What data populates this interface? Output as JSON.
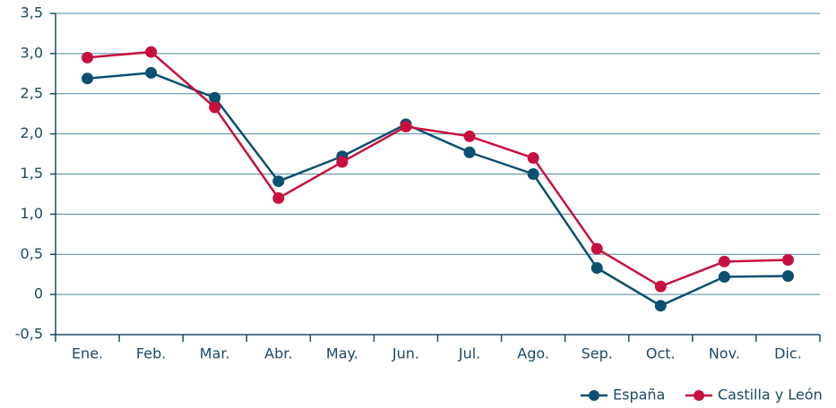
{
  "chart_data": {
    "type": "line",
    "categories": [
      "Ene.",
      "Feb.",
      "Mar.",
      "Abr.",
      "May.",
      "Jun.",
      "Jul.",
      "Ago.",
      "Sep.",
      "Oct.",
      "Nov.",
      "Dic."
    ],
    "series": [
      {
        "name": "España",
        "color": "#0b4f71",
        "values": [
          2.69,
          2.76,
          2.45,
          1.41,
          1.72,
          2.12,
          1.77,
          1.5,
          0.33,
          -0.14,
          0.22,
          0.23
        ]
      },
      {
        "name": "Castilla y León",
        "color": "#c8103e",
        "values": [
          2.95,
          3.02,
          2.33,
          1.2,
          1.65,
          2.09,
          1.97,
          1.7,
          0.57,
          0.1,
          0.41,
          0.43
        ]
      }
    ],
    "ylim": [
      -0.5,
      3.5
    ],
    "yticks": [
      {
        "value": -0.5,
        "label": "-0,5"
      },
      0,
      {
        "value": 0.5,
        "label": "0,5"
      },
      {
        "value": 1,
        "label": "1,0"
      },
      {
        "value": 1.5,
        "label": "1,5"
      },
      {
        "value": 2,
        "label": "2,0"
      },
      {
        "value": 2.5,
        "label": "2,5"
      },
      {
        "value": 3,
        "label": "3,0"
      },
      {
        "value": 3.5,
        "label": "3,5"
      }
    ],
    "grid": true,
    "legend": "bottom-right"
  }
}
